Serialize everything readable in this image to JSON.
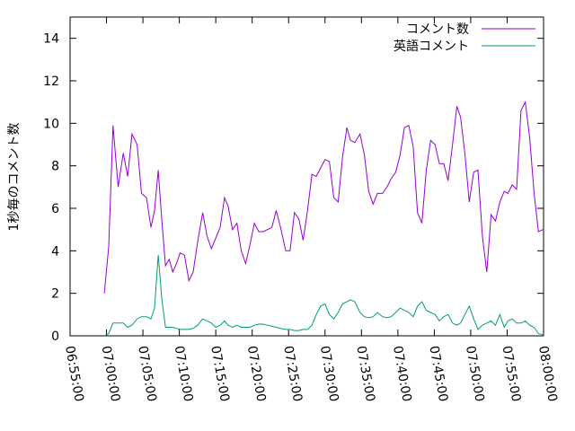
{
  "chart_data": {
    "type": "line",
    "ylabel": "1秒毎のコメント数",
    "ylim": [
      0,
      15
    ],
    "y_ticks": [
      "0",
      "2",
      "4",
      "6",
      "8",
      "10",
      "12",
      "14"
    ],
    "y_tick_values": [
      0,
      2,
      4,
      6,
      8,
      10,
      12,
      14
    ],
    "x_ticks": [
      "06:55:00",
      "07:00:00",
      "07:05:00",
      "07:10:00",
      "07:15:00",
      "07:20:00",
      "07:25:00",
      "07:30:00",
      "07:35:00",
      "07:40:00",
      "07:45:00",
      "07:50:00",
      "07:55:00",
      "08:00:00"
    ],
    "x_tick_values": [
      -5,
      0,
      5,
      10,
      15,
      20,
      25,
      30,
      35,
      40,
      45,
      50,
      55,
      60
    ],
    "x_start": "06:55:00",
    "x_end": "08:00:00",
    "legend_position": "top-right",
    "series": [
      {
        "name": "コメント数",
        "color": "#9400d3",
        "x": [
          -0.3,
          0.3,
          0.9,
          1.6,
          2.3,
          2.9,
          3.5,
          4.2,
          4.8,
          5.5,
          6.1,
          6.6,
          7.1,
          7.6,
          8.1,
          8.6,
          9.1,
          9.6,
          10.1,
          10.7,
          11.3,
          11.9,
          12.5,
          13.2,
          13.8,
          14.4,
          15.0,
          15.6,
          16.2,
          16.7,
          17.3,
          17.9,
          18.5,
          19.1,
          19.7,
          20.3,
          20.9,
          21.5,
          22.1,
          22.7,
          23.3,
          23.9,
          24.6,
          25.2,
          25.8,
          26.4,
          27.0,
          27.6,
          28.2,
          28.8,
          29.4,
          30.0,
          30.6,
          31.2,
          31.8,
          32.4,
          33.0,
          33.5,
          34.1,
          34.8,
          35.4,
          36.0,
          36.6,
          37.2,
          37.9,
          38.5,
          39.1,
          39.7,
          40.3,
          40.9,
          41.5,
          42.1,
          42.7,
          43.3,
          43.9,
          44.5,
          45.1,
          45.7,
          46.3,
          46.9,
          47.5,
          48.1,
          48.6,
          49.2,
          49.8,
          50.4,
          51.0,
          51.6,
          52.2,
          52.8,
          53.4,
          54.0,
          54.6,
          55.1,
          55.7,
          56.3,
          56.9,
          57.5,
          58.1,
          58.7,
          59.3,
          59.9
        ],
        "y": [
          2.0,
          4.2,
          9.9,
          7.0,
          8.6,
          7.5,
          9.5,
          9.0,
          6.7,
          6.5,
          5.1,
          5.9,
          7.8,
          5.4,
          3.3,
          3.6,
          3.0,
          3.4,
          3.9,
          3.8,
          2.6,
          3.0,
          4.4,
          5.8,
          4.7,
          4.1,
          4.6,
          5.1,
          6.5,
          6.1,
          5.0,
          5.3,
          4.0,
          3.4,
          4.3,
          5.3,
          4.9,
          4.9,
          5.0,
          5.1,
          5.9,
          5.1,
          4.0,
          4.0,
          5.8,
          5.5,
          4.5,
          5.9,
          7.6,
          7.5,
          7.9,
          8.3,
          8.2,
          6.5,
          6.3,
          8.4,
          9.8,
          9.2,
          9.1,
          9.5,
          8.5,
          6.8,
          6.2,
          6.7,
          6.7,
          7.0,
          7.4,
          7.7,
          8.5,
          9.8,
          9.9,
          8.9,
          5.8,
          5.3,
          7.8,
          9.2,
          9.0,
          8.1,
          8.1,
          7.3,
          9.0,
          10.8,
          10.3,
          8.6,
          6.3,
          7.7,
          7.8,
          4.7,
          3.0,
          5.7,
          5.4,
          6.3,
          6.8,
          6.7,
          7.1,
          6.9,
          10.6,
          11.0,
          9.3,
          6.7,
          4.9,
          5.0
        ],
        "label_y": [
          2.0,
          4.2,
          9.9,
          7.0,
          8.6,
          7.5,
          9.5,
          9.0,
          6.7,
          6.5,
          5.1,
          5.9,
          7.8,
          5.4,
          3.3,
          3.6,
          3.0,
          3.4,
          3.9,
          3.8,
          2.6,
          3.0,
          4.4,
          5.8,
          4.7,
          4.1,
          4.6,
          5.1,
          6.5,
          6.1,
          5.0,
          5.3,
          4.0,
          3.4,
          4.3,
          5.3,
          4.9,
          4.9,
          5.0,
          5.1,
          5.9,
          5.1,
          4.0,
          4.0,
          5.8,
          5.5,
          4.5,
          5.9,
          7.6,
          7.5,
          7.9,
          8.3,
          8.2,
          6.5,
          6.3,
          8.4,
          9.8,
          9.2,
          9.1,
          9.5,
          8.5,
          6.8,
          6.2,
          6.7,
          6.7,
          7.0,
          7.4,
          7.7,
          8.5,
          9.8,
          9.9,
          8.9,
          5.8,
          5.3,
          7.8,
          9.2,
          9.0,
          8.1,
          8.1,
          7.3,
          9.0,
          10.8,
          10.3,
          8.6,
          6.3,
          7.7,
          7.8,
          4.7,
          3.0,
          5.7,
          5.4,
          6.3,
          6.8,
          6.7,
          7.1,
          6.9,
          10.6,
          11.0,
          9.3,
          6.7,
          4.9,
          5.0
        ]
      },
      {
        "name": "英語コメント",
        "color": "#009e73",
        "x": [
          -0.3,
          0.3,
          0.9,
          1.6,
          2.3,
          2.9,
          3.5,
          4.2,
          4.8,
          5.5,
          6.1,
          6.6,
          7.1,
          7.6,
          8.1,
          8.6,
          9.1,
          9.6,
          10.1,
          10.7,
          11.3,
          11.9,
          12.5,
          13.2,
          13.8,
          14.4,
          15.0,
          15.6,
          16.2,
          16.7,
          17.3,
          17.9,
          18.5,
          19.1,
          19.7,
          20.3,
          20.9,
          21.5,
          22.1,
          22.7,
          23.3,
          23.9,
          24.6,
          25.2,
          25.8,
          26.4,
          27.0,
          27.6,
          28.2,
          28.8,
          29.4,
          30.0,
          30.6,
          31.2,
          31.8,
          32.4,
          33.0,
          33.5,
          34.1,
          34.8,
          35.4,
          36.0,
          36.6,
          37.2,
          37.9,
          38.5,
          39.1,
          39.7,
          40.3,
          40.9,
          41.5,
          42.1,
          42.7,
          43.3,
          43.9,
          44.5,
          45.1,
          45.7,
          46.3,
          46.9,
          47.5,
          48.1,
          48.6,
          49.2,
          49.8,
          50.4,
          51.0,
          51.6,
          52.2,
          52.8,
          53.4,
          54.0,
          54.6,
          55.1,
          55.7,
          56.3,
          56.9,
          57.5,
          58.1,
          58.7,
          59.3,
          59.9
        ],
        "y": [
          0.0,
          0.1,
          0.6,
          0.6,
          0.6,
          0.4,
          0.5,
          0.8,
          0.9,
          0.9,
          0.8,
          1.3,
          3.8,
          1.7,
          0.4,
          0.4,
          0.4,
          0.35,
          0.3,
          0.3,
          0.3,
          0.35,
          0.5,
          0.8,
          0.7,
          0.6,
          0.4,
          0.5,
          0.7,
          0.5,
          0.4,
          0.5,
          0.4,
          0.4,
          0.4,
          0.5,
          0.55,
          0.55,
          0.5,
          0.45,
          0.4,
          0.35,
          0.3,
          0.3,
          0.25,
          0.25,
          0.3,
          0.3,
          0.5,
          1.0,
          1.4,
          1.5,
          1.0,
          0.8,
          1.1,
          1.5,
          1.6,
          1.7,
          1.6,
          1.1,
          0.9,
          0.85,
          0.9,
          1.1,
          0.9,
          0.85,
          0.9,
          1.1,
          1.3,
          1.2,
          1.1,
          0.9,
          1.4,
          1.6,
          1.2,
          1.1,
          1.0,
          0.7,
          0.9,
          1.0,
          0.6,
          0.5,
          0.6,
          1.0,
          1.4,
          0.8,
          0.3,
          0.5,
          0.6,
          0.7,
          0.5,
          1.0,
          0.4,
          0.7,
          0.8,
          0.6,
          0.6,
          0.7,
          0.5,
          0.4,
          0.1,
          0.05
        ],
        "label_y": [
          0.0,
          0.1,
          0.6,
          0.6,
          0.6,
          0.4,
          0.5,
          0.8,
          0.9,
          0.9,
          0.8,
          1.3,
          3.8,
          1.7,
          0.4,
          0.4,
          0.4,
          0.35,
          0.3,
          0.3,
          0.3,
          0.35,
          0.5,
          0.8,
          0.7,
          0.6,
          0.4,
          0.5,
          0.7,
          0.5,
          0.4,
          0.5,
          0.4,
          0.4,
          0.4,
          0.5,
          0.55,
          0.55,
          0.5,
          0.45,
          0.4,
          0.35,
          0.3,
          0.3,
          0.25,
          0.25,
          0.3,
          0.3,
          0.5,
          1.0,
          1.4,
          1.5,
          1.0,
          0.8,
          1.1,
          1.5,
          1.6,
          1.7,
          1.6,
          1.1,
          0.9,
          0.85,
          0.9,
          1.1,
          0.9,
          0.85,
          0.9,
          1.1,
          1.3,
          1.2,
          1.1,
          0.9,
          1.4,
          1.6,
          1.2,
          1.1,
          1.0,
          0.7,
          0.9,
          1.0,
          0.6,
          0.5,
          0.6,
          1.0,
          1.4,
          0.8,
          0.3,
          0.5,
          0.6,
          0.7,
          0.5,
          1.0,
          0.4,
          0.7,
          0.8,
          0.6,
          0.6,
          0.7,
          0.5,
          0.4,
          0.1,
          0.05
        ]
      }
    ]
  }
}
